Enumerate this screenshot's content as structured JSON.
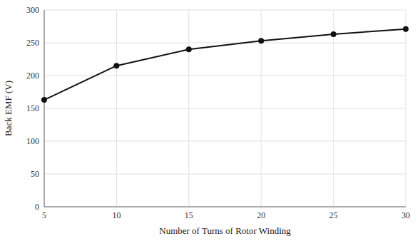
{
  "chart_data": {
    "type": "line",
    "x": [
      5,
      10,
      15,
      20,
      25,
      30
    ],
    "values": [
      163,
      215,
      240,
      253,
      263,
      271
    ],
    "xlabel": "Number of Turns of Rotor Winding",
    "ylabel": "Back EMF (V)",
    "xlim": [
      5,
      30
    ],
    "ylim": [
      0,
      300
    ],
    "xticks": [
      5,
      10,
      15,
      20,
      25,
      30
    ],
    "yticks": [
      0,
      50,
      100,
      150,
      200,
      250,
      300
    ],
    "grid": true,
    "color": "#111111",
    "marker": "circle"
  }
}
